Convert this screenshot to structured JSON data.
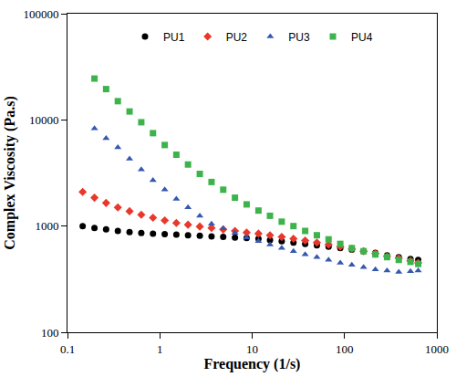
{
  "chart_data": {
    "type": "scatter",
    "x_label": "Frequency (1/s)",
    "y_label": "Complex Viscosity (Pa.s)",
    "log": true,
    "legend": "top",
    "xlim": [
      0.1,
      1000
    ],
    "ylim": [
      100,
      100000
    ],
    "xticks": [
      0.1,
      1,
      10,
      100,
      1000
    ],
    "yticks": [
      100,
      1000,
      10000,
      100000
    ],
    "x": [
      0.146,
      0.196,
      0.262,
      0.351,
      0.47,
      0.63,
      0.843,
      1.13,
      1.51,
      2.02,
      2.71,
      3.63,
      4.86,
      6.51,
      8.71,
      11.7,
      15.6,
      20.9,
      28.0,
      37.5,
      50.2,
      67.2,
      90.0,
      120,
      161,
      216,
      289,
      387,
      518,
      628
    ],
    "series": [
      {
        "name": "PU1",
        "color": "#000000",
        "marker": "circle",
        "values": [
          1000,
          960,
          930,
          900,
          880,
          860,
          850,
          840,
          830,
          820,
          810,
          800,
          790,
          780,
          770,
          760,
          740,
          720,
          700,
          680,
          660,
          640,
          620,
          600,
          580,
          560,
          530,
          510,
          490,
          480
        ]
      },
      {
        "name": "PU2",
        "color": "#e8382b",
        "marker": "diamond",
        "values": [
          2100,
          1850,
          1650,
          1500,
          1380,
          1280,
          1200,
          1130,
          1070,
          1030,
          990,
          960,
          930,
          900,
          870,
          850,
          820,
          790,
          760,
          730,
          700,
          670,
          640,
          610,
          580,
          550,
          520,
          500,
          470,
          450
        ]
      },
      {
        "name": "PU3",
        "color": "#3558b0",
        "marker": "triangle-up",
        "values": [
          null,
          8300,
          6700,
          5500,
          4300,
          3400,
          2700,
          2200,
          1800,
          1500,
          1250,
          1050,
          950,
          860,
          780,
          720,
          670,
          620,
          580,
          540,
          510,
          480,
          450,
          430,
          410,
          390,
          380,
          370,
          375,
          380
        ]
      },
      {
        "name": "PU4",
        "color": "#3cb44b",
        "marker": "square",
        "values": [
          null,
          24500,
          19500,
          15000,
          12000,
          9500,
          7500,
          5800,
          4700,
          3800,
          3100,
          2600,
          2200,
          1850,
          1600,
          1400,
          1250,
          1100,
          1000,
          900,
          820,
          750,
          680,
          620,
          580,
          540,
          510,
          480,
          460,
          440
        ]
      }
    ]
  }
}
